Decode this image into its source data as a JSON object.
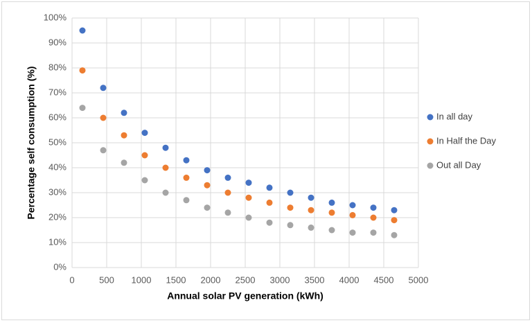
{
  "chart_data": {
    "type": "scatter",
    "x_label": "Annual solar PV generation (kWh)",
    "y_label": "Percentage self consumption (%)",
    "x": [
      150,
      450,
      750,
      1050,
      1350,
      1650,
      1950,
      2250,
      2550,
      2850,
      3150,
      3450,
      3750,
      4050,
      4350,
      4650
    ],
    "series": [
      {
        "name": "In all day",
        "color": "#4472c4",
        "values": [
          95,
          72,
          62,
          54,
          48,
          43,
          39,
          36,
          34,
          32,
          30,
          28,
          26,
          25,
          24,
          23
        ]
      },
      {
        "name": "In Half the Day",
        "color": "#ed7d31",
        "values": [
          79,
          60,
          53,
          45,
          40,
          36,
          33,
          30,
          28,
          26,
          24,
          23,
          22,
          21,
          20,
          19
        ]
      },
      {
        "name": "Out all Day",
        "color": "#a5a5a5",
        "values": [
          64,
          47,
          42,
          35,
          30,
          27,
          24,
          22,
          20,
          18,
          17,
          16,
          15,
          14,
          14,
          13
        ]
      }
    ],
    "xlim": [
      0,
      5000
    ],
    "xticks": [
      0,
      500,
      1000,
      1500,
      2000,
      2500,
      3000,
      3500,
      4000,
      4500,
      5000
    ],
    "ylim": [
      0,
      100
    ],
    "yticks": [
      {
        "value": 0,
        "label": "0%"
      },
      {
        "value": 10,
        "label": "10%"
      },
      {
        "value": 20,
        "label": "20%"
      },
      {
        "value": 30,
        "label": "30%"
      },
      {
        "value": 40,
        "label": "40%"
      },
      {
        "value": 50,
        "label": "50%"
      },
      {
        "value": 60,
        "label": "60%"
      },
      {
        "value": 70,
        "label": "70%"
      },
      {
        "value": 80,
        "label": "80%"
      },
      {
        "value": 90,
        "label": "90%"
      },
      {
        "value": 100,
        "label": "100%"
      }
    ],
    "grid": true,
    "legend": "right"
  }
}
